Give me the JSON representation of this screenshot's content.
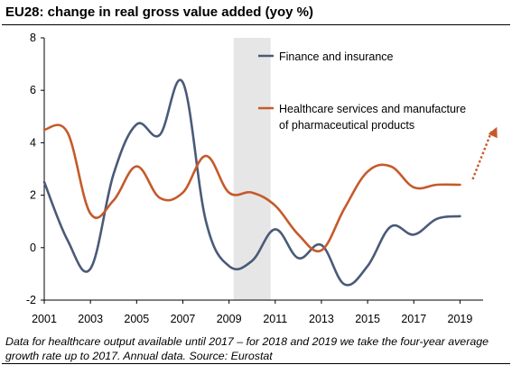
{
  "chart_data": {
    "type": "line",
    "title": "EU28: change in real gross value added (yoy %)",
    "x": [
      2001,
      2002,
      2003,
      2004,
      2005,
      2006,
      2007,
      2008,
      2009,
      2010,
      2011,
      2012,
      2013,
      2014,
      2015,
      2016,
      2017,
      2018,
      2019
    ],
    "xticks": [
      "2001",
      "2003",
      "2005",
      "2007",
      "2009",
      "2011",
      "2013",
      "2015",
      "2017",
      "2019"
    ],
    "xlim": [
      2001,
      2020
    ],
    "ylim": [
      -2,
      8
    ],
    "yticks": [
      "-2",
      "0",
      "2",
      "4",
      "6",
      "8"
    ],
    "shaded_region": [
      2009.2,
      2010.8
    ],
    "series": [
      {
        "name": "Finance and insurance",
        "color": "#4a5a78",
        "values": [
          2.5,
          0.3,
          -0.8,
          2.8,
          4.7,
          4.3,
          6.3,
          1.0,
          -0.7,
          -0.5,
          0.7,
          -0.4,
          0.1,
          -1.4,
          -0.7,
          0.8,
          0.5,
          1.1,
          1.2
        ]
      },
      {
        "name_lines": [
          "Healthcare services and manufacture",
          "of pharmaceutical products"
        ],
        "color": "#c55a2b",
        "values": [
          4.5,
          4.4,
          1.3,
          1.8,
          3.1,
          1.9,
          2.1,
          3.5,
          2.1,
          2.1,
          1.6,
          0.5,
          -0.1,
          1.5,
          2.9,
          3.1,
          2.3,
          2.4,
          2.4
        ]
      }
    ],
    "projection": {
      "from": [
        2019,
        2.4
      ],
      "to": [
        2020.6,
        4.6
      ],
      "color": "#c55a2b"
    },
    "legend_position": "top-right"
  },
  "footnote": "Data for healthcare output available until 2017 – for 2018 and 2019 we take the four-year average growth rate up to 2017. Annual data. Source: Eurostat"
}
